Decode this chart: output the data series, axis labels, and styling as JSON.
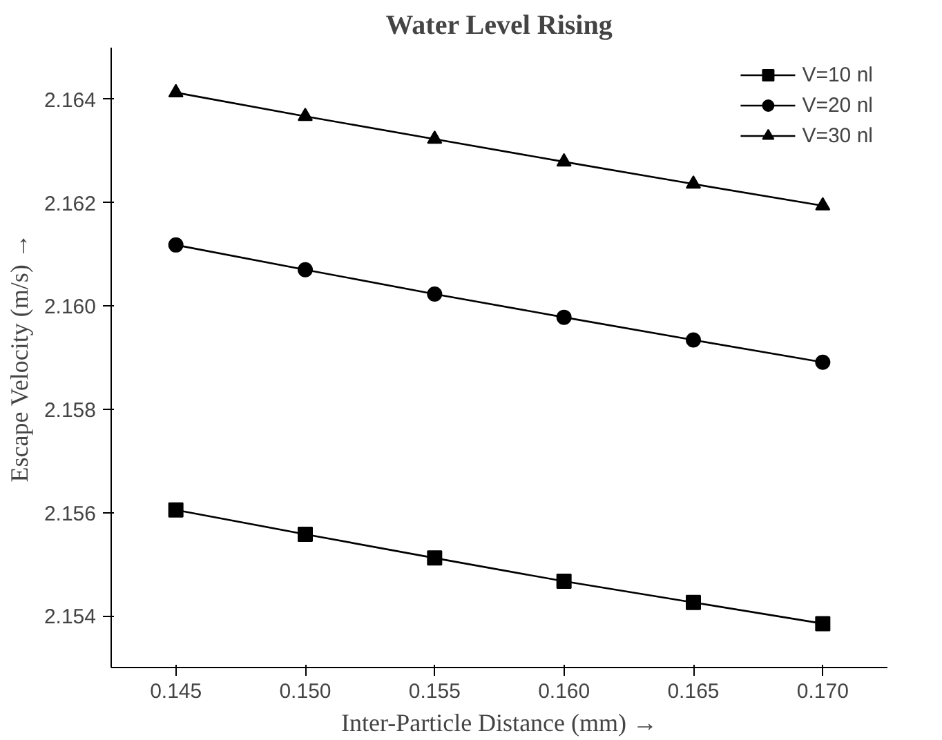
{
  "chart_data": {
    "type": "line",
    "title": "Water Level Rising",
    "xlabel": "Inter-Particle Distance (mm) →",
    "ylabel": "Escape Velocity (m/s) →",
    "x": [
      0.145,
      0.15,
      0.155,
      0.16,
      0.165,
      0.17
    ],
    "series": [
      {
        "name": "V=10 nl",
        "color": "#000000",
        "marker": "square",
        "values": [
          2.15605,
          2.15558,
          2.15512,
          2.15467,
          2.15426,
          2.15385
        ]
      },
      {
        "name": "V=20 nl",
        "color": "#000000",
        "marker": "circle",
        "values": [
          2.16118,
          2.1607,
          2.16023,
          2.15978,
          2.15934,
          2.15891
        ]
      },
      {
        "name": "V=30 nl",
        "color": "#000000",
        "marker": "triangle",
        "values": [
          2.16413,
          2.16367,
          2.16323,
          2.16279,
          2.16236,
          2.16194
        ]
      }
    ],
    "xlim": [
      0.1425,
      0.1725
    ],
    "ylim": [
      2.153,
      2.165
    ],
    "xticks": [
      {
        "value": 0.145,
        "label": "0.145"
      },
      {
        "value": 0.15,
        "label": "0.150"
      },
      {
        "value": 0.155,
        "label": "0.155"
      },
      {
        "value": 0.16,
        "label": "0.160"
      },
      {
        "value": 0.165,
        "label": "0.165"
      },
      {
        "value": 0.17,
        "label": "0.170"
      }
    ],
    "yticks": [
      {
        "value": 2.154,
        "label": "2.154"
      },
      {
        "value": 2.156,
        "label": "2.156"
      },
      {
        "value": 2.158,
        "label": "2.158"
      },
      {
        "value": 2.16,
        "label": "2.160"
      },
      {
        "value": 2.162,
        "label": "2.162"
      },
      {
        "value": 2.164,
        "label": "2.164"
      }
    ],
    "grid": false,
    "legend": "top right",
    "line_style": "solid"
  }
}
